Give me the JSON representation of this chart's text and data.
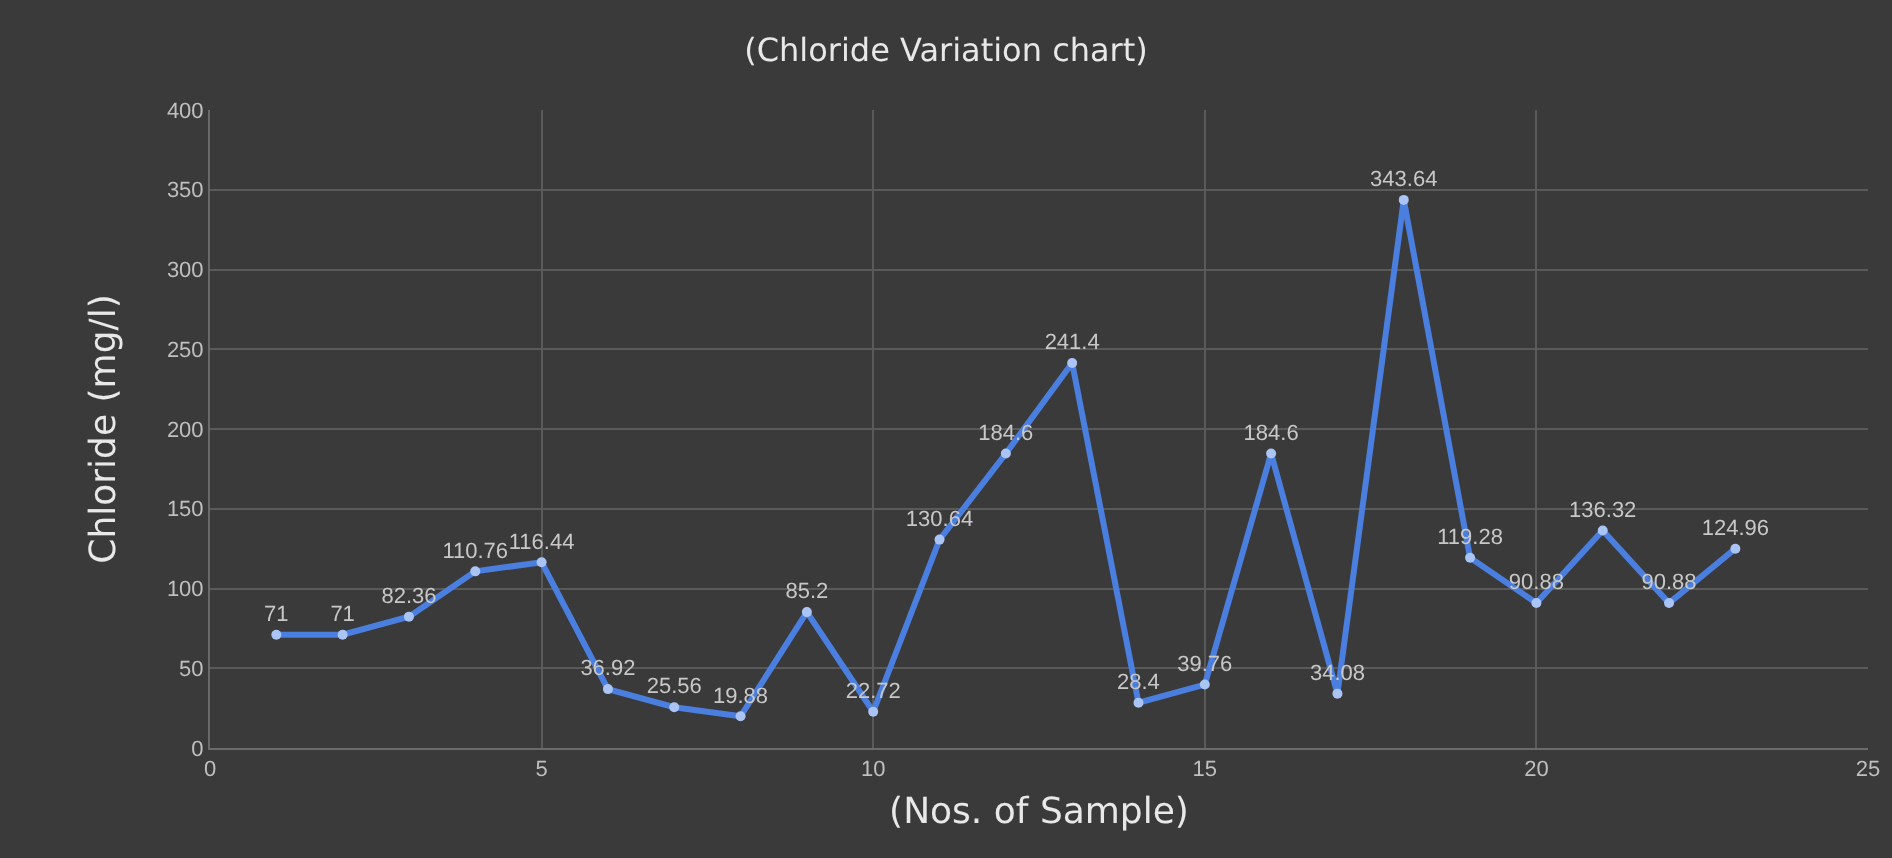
{
  "chart_data": {
    "type": "line",
    "title": "(Chloride Variation chart)",
    "xlabel": "(Nos. of Sample)",
    "ylabel": "Chloride (mg/l)",
    "x": [
      1,
      2,
      3,
      4,
      5,
      6,
      7,
      8,
      9,
      10,
      11,
      12,
      13,
      14,
      15,
      16,
      17,
      18,
      19,
      20,
      21,
      22,
      23
    ],
    "series": [
      {
        "color": "#4a7fe0",
        "values": [
          71,
          71,
          82.36,
          110.76,
          116.44,
          36.92,
          25.56,
          19.88,
          85.2,
          22.72,
          130.64,
          184.6,
          241.4,
          28.4,
          39.76,
          184.6,
          34.08,
          343.64,
          119.28,
          90.88,
          136.32,
          90.88,
          124.96
        ]
      }
    ],
    "xlim": [
      0,
      25
    ],
    "xticks": [
      0,
      5,
      10,
      15,
      20,
      25
    ],
    "ylim": [
      0,
      400
    ],
    "yticks": [
      0,
      50,
      100,
      150,
      200,
      250,
      300,
      350,
      400
    ],
    "grid": true,
    "data_labels": true,
    "marker": "circle",
    "line_style": "solid"
  }
}
